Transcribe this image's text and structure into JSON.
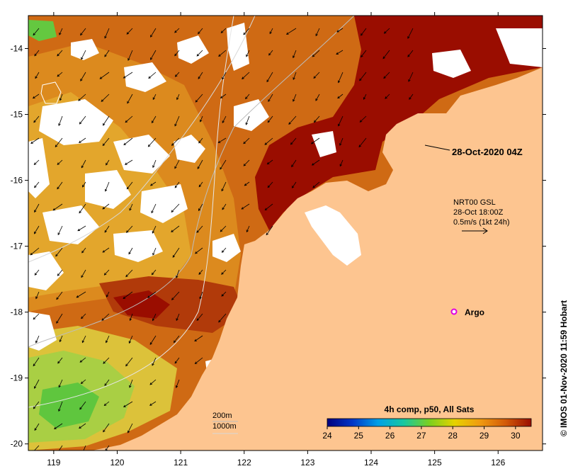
{
  "map": {
    "lat_ticks": [
      "-14",
      "-15",
      "-16",
      "-17",
      "-18",
      "-19",
      "-20"
    ],
    "lon_ticks": [
      "119",
      "120",
      "121",
      "122",
      "123",
      "124",
      "125",
      "126"
    ],
    "lat_range": [
      -20.1,
      -13.5
    ],
    "lon_range": [
      118.6,
      126.7
    ],
    "colors": {
      "land": "#fdc590",
      "hot": "#9a0d00",
      "warm": "#c2400a",
      "mid": "#de8c1f",
      "cool": "#e6b133",
      "cooler": "#b7d040",
      "green": "#55c83a",
      "cloud": "#ffffff"
    }
  },
  "annotations": {
    "timestamp": "28-Oct-2020 04Z",
    "current_source": "NRT00 GSL",
    "current_time": "28-Oct 18:00Z",
    "current_scale": "0.5m/s (1kt 24h)",
    "argo_label": "Argo",
    "isobath_200": "200m",
    "isobath_1000": "1000m"
  },
  "colorbar": {
    "title": "4h comp, p50, All Sats",
    "ticks": [
      "24",
      "25",
      "26",
      "27",
      "28",
      "29",
      "30"
    ],
    "range": [
      24,
      30.5
    ],
    "stops": [
      "#00007f",
      "#0037c8",
      "#00a0e6",
      "#18c8a0",
      "#7ad020",
      "#e6d200",
      "#f09a10",
      "#d25a08",
      "#9a0d00"
    ]
  },
  "credit": "© IMOS 01-Nov-2020 11:59 Hobart"
}
